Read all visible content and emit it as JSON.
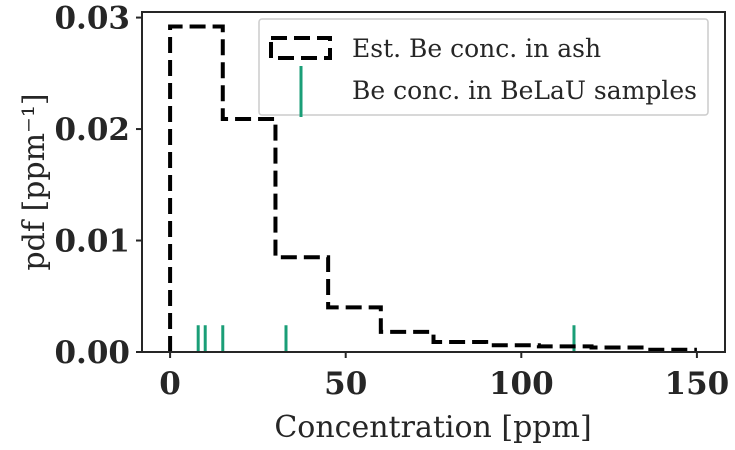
{
  "chart_data": {
    "type": "step-histogram",
    "xlabel": "Concentration [ppm]",
    "ylabel": "pdf [ppm⁻¹]",
    "xlim": [
      -8,
      158
    ],
    "ylim": [
      0,
      0.0305
    ],
    "xticks": [
      0,
      50,
      100,
      150
    ],
    "xtick_labels": [
      "0",
      "50",
      "100",
      "150"
    ],
    "yticks": [
      0.0,
      0.01,
      0.02,
      0.03
    ],
    "ytick_labels": [
      "0.00",
      "0.01",
      "0.02",
      "0.03"
    ],
    "histogram": {
      "name": "Est. Be conc. in ash",
      "color": "#000000",
      "bin_edges": [
        0,
        15,
        30,
        45,
        60,
        75,
        90,
        105,
        120,
        135,
        150
      ],
      "values": [
        0.0292,
        0.0209,
        0.0085,
        0.004,
        0.0018,
        0.0009,
        0.0006,
        0.0005,
        0.0004,
        0.0002
      ]
    },
    "rug": {
      "name": "Be conc. in BeLaU samples",
      "color": "#1a9e77",
      "values": [
        8,
        10,
        15,
        33,
        115
      ],
      "height": 0.0024
    },
    "legend": {
      "location": "upper right",
      "entries": [
        "Est. Be conc. in ash",
        "Be conc. in BeLaU samples"
      ]
    }
  }
}
